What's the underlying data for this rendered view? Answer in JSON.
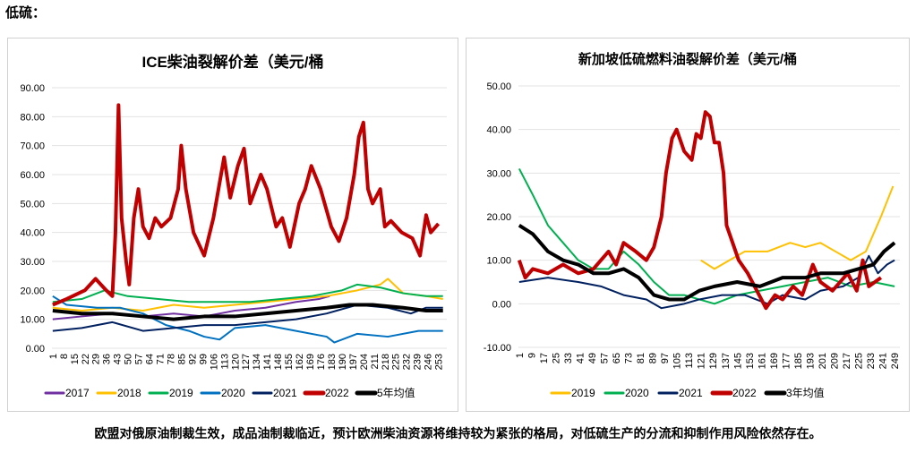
{
  "header": "低硫：",
  "footer": "欧盟对俄原油制裁生效，成品油制裁临近，预计欧洲柴油资源将维持较为紧张的格局，对低硫生产的分流和抑制作用风险依然存在。",
  "chart_data": [
    {
      "type": "line",
      "title": "ICE柴油裂解价差（美元/桶",
      "ylim": [
        0,
        90
      ],
      "yticks": [
        "0.00",
        "10.00",
        "20.00",
        "30.00",
        "40.00",
        "50.00",
        "60.00",
        "70.00",
        "80.00",
        "90.00"
      ],
      "xstart": 1,
      "xstep": 7,
      "xcount": 37,
      "xmax": 258,
      "series": [
        {
          "name": "2017",
          "color": "#7030a0",
          "w": 2,
          "pts": [
            [
              1,
              10
            ],
            [
              20,
              11
            ],
            [
              40,
              12
            ],
            [
              60,
              11
            ],
            [
              80,
              12
            ],
            [
              100,
              11
            ],
            [
              120,
              13
            ],
            [
              140,
              14
            ],
            [
              160,
              16
            ],
            [
              175,
              17
            ],
            [
              182,
              18
            ]
          ]
        },
        {
          "name": "2018",
          "color": "#ffc000",
          "w": 2,
          "pts": [
            [
              1,
              14
            ],
            [
              20,
              13
            ],
            [
              40,
              14
            ],
            [
              60,
              13
            ],
            [
              80,
              15
            ],
            [
              100,
              14
            ],
            [
              120,
              15
            ],
            [
              140,
              16
            ],
            [
              160,
              17
            ],
            [
              180,
              18
            ],
            [
              200,
              20
            ],
            [
              215,
              22
            ],
            [
              220,
              24
            ],
            [
              230,
              19
            ],
            [
              245,
              18
            ],
            [
              256,
              17
            ]
          ]
        },
        {
          "name": "2019",
          "color": "#00b050",
          "w": 2,
          "pts": [
            [
              1,
              16
            ],
            [
              20,
              17
            ],
            [
              35,
              20
            ],
            [
              50,
              18
            ],
            [
              70,
              17
            ],
            [
              90,
              16
            ],
            [
              110,
              16
            ],
            [
              130,
              16
            ],
            [
              150,
              17
            ],
            [
              170,
              18
            ],
            [
              190,
              20
            ],
            [
              200,
              22
            ],
            [
              215,
              21
            ],
            [
              230,
              19
            ],
            [
              245,
              18
            ],
            [
              256,
              18
            ]
          ]
        },
        {
          "name": "2020",
          "color": "#0070c0",
          "w": 2,
          "pts": [
            [
              1,
              18
            ],
            [
              10,
              15
            ],
            [
              30,
              14
            ],
            [
              45,
              14
            ],
            [
              60,
              12
            ],
            [
              75,
              8
            ],
            [
              90,
              6
            ],
            [
              100,
              4
            ],
            [
              110,
              3
            ],
            [
              120,
              7
            ],
            [
              140,
              8
            ],
            [
              160,
              6
            ],
            [
              180,
              4
            ],
            [
              185,
              2
            ],
            [
              200,
              5
            ],
            [
              220,
              4
            ],
            [
              240,
              6
            ],
            [
              256,
              6
            ]
          ]
        },
        {
          "name": "2021",
          "color": "#002060",
          "w": 2,
          "pts": [
            [
              1,
              6
            ],
            [
              20,
              7
            ],
            [
              40,
              9
            ],
            [
              60,
              6
            ],
            [
              80,
              7
            ],
            [
              100,
              8
            ],
            [
              120,
              8
            ],
            [
              140,
              9
            ],
            [
              160,
              10
            ],
            [
              180,
              12
            ],
            [
              200,
              15
            ],
            [
              220,
              14
            ],
            [
              235,
              12
            ],
            [
              245,
              14
            ],
            [
              256,
              14
            ]
          ]
        },
        {
          "name": "2022",
          "color": "#c00000",
          "w": 4,
          "pts": [
            [
              1,
              15
            ],
            [
              10,
              17
            ],
            [
              22,
              20
            ],
            [
              29,
              24
            ],
            [
              36,
              20
            ],
            [
              40,
              18
            ],
            [
              42,
              40
            ],
            [
              44,
              84
            ],
            [
              46,
              45
            ],
            [
              49,
              30
            ],
            [
              51,
              22
            ],
            [
              54,
              45
            ],
            [
              57,
              55
            ],
            [
              60,
              42
            ],
            [
              64,
              38
            ],
            [
              68,
              45
            ],
            [
              72,
              42
            ],
            [
              78,
              45
            ],
            [
              83,
              55
            ],
            [
              85,
              70
            ],
            [
              88,
              55
            ],
            [
              93,
              40
            ],
            [
              100,
              32
            ],
            [
              106,
              45
            ],
            [
              111,
              60
            ],
            [
              113,
              66
            ],
            [
              117,
              52
            ],
            [
              122,
              63
            ],
            [
              126,
              69
            ],
            [
              130,
              50
            ],
            [
              137,
              60
            ],
            [
              141,
              55
            ],
            [
              147,
              42
            ],
            [
              151,
              45
            ],
            [
              156,
              35
            ],
            [
              162,
              50
            ],
            [
              166,
              55
            ],
            [
              170,
              63
            ],
            [
              176,
              55
            ],
            [
              183,
              42
            ],
            [
              188,
              37
            ],
            [
              193,
              45
            ],
            [
              198,
              60
            ],
            [
              201,
              73
            ],
            [
              204,
              78
            ],
            [
              207,
              55
            ],
            [
              210,
              50
            ],
            [
              215,
              55
            ],
            [
              218,
              42
            ],
            [
              222,
              44
            ],
            [
              229,
              40
            ],
            [
              236,
              38
            ],
            [
              241,
              32
            ],
            [
              245,
              46
            ],
            [
              248,
              40
            ],
            [
              253,
              43
            ]
          ]
        },
        {
          "name": "5年均值",
          "color": "#000000",
          "w": 4,
          "pts": [
            [
              1,
              13
            ],
            [
              20,
              12
            ],
            [
              40,
              12
            ],
            [
              60,
              11
            ],
            [
              80,
              10
            ],
            [
              100,
              11
            ],
            [
              120,
              11
            ],
            [
              140,
              12
            ],
            [
              160,
              13
            ],
            [
              180,
              14
            ],
            [
              195,
              15
            ],
            [
              210,
              15
            ],
            [
              230,
              14
            ],
            [
              245,
              13
            ],
            [
              256,
              13
            ]
          ]
        }
      ]
    },
    {
      "type": "line",
      "title": "新加坡低硫燃料油裂解价差（美元/桶",
      "ylim": [
        -10,
        50
      ],
      "yticks": [
        "-10.00",
        "0.00",
        "10.00",
        "20.00",
        "30.00",
        "40.00",
        "50.00"
      ],
      "xstart": 1,
      "xstep": 8,
      "xcount": 32,
      "xmax": 252,
      "series": [
        {
          "name": "2019",
          "color": "#ffc000",
          "w": 2,
          "pts": [
            [
              121,
              10
            ],
            [
              130,
              8
            ],
            [
              140,
              10
            ],
            [
              150,
              12
            ],
            [
              165,
              12
            ],
            [
              180,
              14
            ],
            [
              190,
              13
            ],
            [
              200,
              14
            ],
            [
              210,
              12
            ],
            [
              220,
              10
            ],
            [
              230,
              12
            ],
            [
              240,
              20
            ],
            [
              248,
              27
            ]
          ]
        },
        {
          "name": "2020",
          "color": "#00b050",
          "w": 2,
          "pts": [
            [
              1,
              31
            ],
            [
              10,
              25
            ],
            [
              20,
              18
            ],
            [
              30,
              14
            ],
            [
              40,
              10
            ],
            [
              50,
              8
            ],
            [
              60,
              8
            ],
            [
              70,
              12
            ],
            [
              80,
              9
            ],
            [
              90,
              5
            ],
            [
              100,
              2
            ],
            [
              110,
              2
            ],
            [
              130,
              0
            ],
            [
              145,
              2
            ],
            [
              160,
              3
            ],
            [
              175,
              4
            ],
            [
              190,
              5
            ],
            [
              205,
              6
            ],
            [
              220,
              4
            ],
            [
              235,
              5
            ],
            [
              249,
              4
            ]
          ]
        },
        {
          "name": "2021",
          "color": "#002060",
          "w": 2,
          "pts": [
            [
              1,
              5
            ],
            [
              20,
              6
            ],
            [
              40,
              5
            ],
            [
              55,
              4
            ],
            [
              70,
              2
            ],
            [
              85,
              1
            ],
            [
              95,
              -1
            ],
            [
              110,
              0
            ],
            [
              120,
              1
            ],
            [
              135,
              2
            ],
            [
              150,
              2
            ],
            [
              165,
              0
            ],
            [
              175,
              2
            ],
            [
              190,
              1
            ],
            [
              200,
              3
            ],
            [
              215,
              4
            ],
            [
              225,
              6
            ],
            [
              232,
              11
            ],
            [
              238,
              7
            ],
            [
              244,
              9
            ],
            [
              249,
              10
            ]
          ]
        },
        {
          "name": "2022",
          "color": "#c00000",
          "w": 4,
          "pts": [
            [
              1,
              10
            ],
            [
              5,
              6
            ],
            [
              10,
              8
            ],
            [
              20,
              7
            ],
            [
              30,
              9
            ],
            [
              40,
              7
            ],
            [
              50,
              8
            ],
            [
              60,
              12
            ],
            [
              65,
              9
            ],
            [
              70,
              14
            ],
            [
              78,
              12
            ],
            [
              85,
              10
            ],
            [
              90,
              13
            ],
            [
              95,
              20
            ],
            [
              98,
              30
            ],
            [
              102,
              38
            ],
            [
              105,
              40
            ],
            [
              110,
              35
            ],
            [
              115,
              33
            ],
            [
              118,
              39
            ],
            [
              121,
              38
            ],
            [
              124,
              44
            ],
            [
              127,
              43
            ],
            [
              130,
              37
            ],
            [
              133,
              37
            ],
            [
              136,
              30
            ],
            [
              138,
              18
            ],
            [
              142,
              14
            ],
            [
              146,
              10
            ],
            [
              152,
              7
            ],
            [
              158,
              3
            ],
            [
              164,
              -1
            ],
            [
              170,
              2
            ],
            [
              175,
              1
            ],
            [
              182,
              4
            ],
            [
              188,
              2
            ],
            [
              195,
              9
            ],
            [
              200,
              5
            ],
            [
              208,
              3
            ],
            [
              213,
              5
            ],
            [
              218,
              7
            ],
            [
              224,
              3
            ],
            [
              228,
              10
            ],
            [
              232,
              4
            ],
            [
              236,
              5
            ],
            [
              240,
              6
            ]
          ]
        },
        {
          "name": "3年均值",
          "color": "#000000",
          "w": 4,
          "pts": [
            [
              1,
              18
            ],
            [
              10,
              16
            ],
            [
              20,
              12
            ],
            [
              30,
              10
            ],
            [
              40,
              9
            ],
            [
              50,
              7
            ],
            [
              60,
              7
            ],
            [
              70,
              8
            ],
            [
              80,
              6
            ],
            [
              90,
              2
            ],
            [
              100,
              1
            ],
            [
              110,
              1
            ],
            [
              120,
              3
            ],
            [
              130,
              4
            ],
            [
              145,
              5
            ],
            [
              160,
              4
            ],
            [
              175,
              6
            ],
            [
              190,
              6
            ],
            [
              200,
              7
            ],
            [
              215,
              7
            ],
            [
              225,
              8
            ],
            [
              235,
              9
            ],
            [
              242,
              12
            ],
            [
              249,
              14
            ]
          ]
        }
      ]
    }
  ]
}
